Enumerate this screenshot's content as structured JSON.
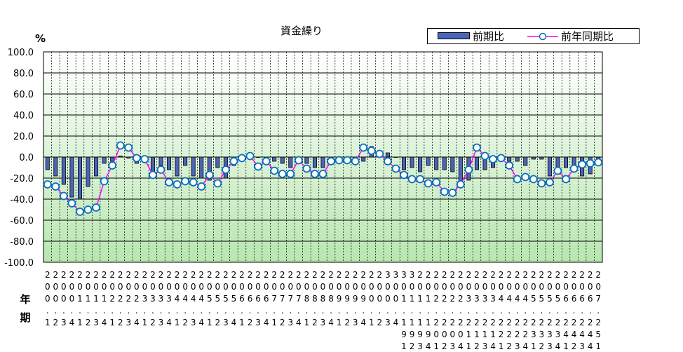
{
  "chart_data": {
    "type": "bar",
    "title": "資金繰り",
    "y_unit": "%",
    "x_axis_label": "年期",
    "ylim": [
      -100,
      100
    ],
    "y_ticks": [
      "100.0",
      "80.0",
      "60.0",
      "40.0",
      "20.0",
      "0.0",
      "-20.0",
      "-40.0",
      "-60.0",
      "-80.0",
      "-100.0"
    ],
    "y_tick_values": [
      100,
      80,
      60,
      40,
      20,
      0,
      -20,
      -40,
      -60,
      -80,
      -100
    ],
    "categories": [
      "2001",
      "2002",
      "2003",
      "2004",
      "2011",
      "2012",
      "2013",
      "2014",
      "2021",
      "2022",
      "2023",
      "2024",
      "2031",
      "2032",
      "2033",
      "2034",
      "2041",
      "2042",
      "2043",
      "2044",
      "2051",
      "2052",
      "2053",
      "2054",
      "2061",
      "2062",
      "2063",
      "2064",
      "2071",
      "2072",
      "2073",
      "2074",
      "2081",
      "2082",
      "2083",
      "2084",
      "2091",
      "2092",
      "2093",
      "2094",
      "2001",
      "2002",
      "2003",
      "2004",
      "2011",
      "2012",
      "2013",
      "2014",
      "2021",
      "2022",
      "2023",
      "2024",
      "2031",
      "2032",
      "2033",
      "2034",
      "2041",
      "2042",
      "2043",
      "2044",
      "2051",
      "2052",
      "2053",
      "2054",
      "2061",
      "2062",
      "2063",
      "2064",
      "2071"
    ],
    "tick_label_lines": {
      "line1": [
        "2",
        "2",
        "2",
        "2",
        "2",
        "2",
        "2",
        "2",
        "2",
        "2",
        "2",
        "2",
        "2",
        "2",
        "2",
        "2",
        "2",
        "2",
        "2",
        "2",
        "2",
        "2",
        "2",
        "2",
        "2",
        "2",
        "2",
        "2",
        "2",
        "2",
        "2",
        "2",
        "2",
        "2",
        "2",
        "2",
        "2",
        "2",
        "2",
        "2",
        "2",
        "2",
        "3",
        "3",
        "3",
        "3",
        "2",
        "2",
        "2",
        "2",
        "2",
        "2",
        "2",
        "2",
        "2",
        "2",
        "2",
        "2",
        "2",
        "2",
        "2",
        "2",
        "2",
        "2",
        "2",
        "2",
        "2",
        "2",
        "2"
      ],
      "line2": [
        "0",
        "0",
        "0",
        "0",
        "0",
        "0",
        "0",
        "0",
        "0",
        "0",
        "0",
        "0",
        "0",
        "0",
        "0",
        "0",
        "0",
        "0",
        "0",
        "0",
        "0",
        "0",
        "0",
        "0",
        "0",
        "0",
        "0",
        "0",
        "0",
        "0",
        "0",
        "0",
        "0",
        "0",
        "0",
        "0",
        "0",
        "0",
        "0",
        "0",
        "0",
        "0",
        "0",
        "0",
        "0",
        "0",
        "0",
        "0",
        "0",
        "0",
        "0",
        "0",
        "0",
        "0",
        "0",
        "0",
        "0",
        "0",
        "0",
        "0",
        "0",
        "0",
        "0",
        "0",
        "0",
        "0",
        "0",
        "0",
        "0"
      ],
      "line3": [
        "0",
        "0",
        "0",
        "0",
        "1",
        "1",
        "1",
        "1",
        "2",
        "2",
        "2",
        "2",
        "3",
        "3",
        "3",
        "3",
        "4",
        "4",
        "4",
        "4",
        "5",
        "5",
        "5",
        "5",
        "6",
        "6",
        "6",
        "6",
        "7",
        "7",
        "7",
        "7",
        "8",
        "8",
        "8",
        "8",
        "9",
        "9",
        "9",
        "9",
        "0",
        "0",
        "0",
        "0",
        "1",
        "1",
        "1",
        "1",
        "2",
        "2",
        "2",
        "2",
        "3",
        "3",
        "3",
        "3",
        "4",
        "4",
        "4",
        "4",
        "5",
        "5",
        "5",
        "5",
        "6",
        "6",
        "6",
        "6",
        "7"
      ],
      "line4": [
        ".",
        ".",
        ".",
        ".",
        ".",
        ".",
        ".",
        ".",
        ".",
        ".",
        ".",
        ".",
        ".",
        ".",
        ".",
        ".",
        ".",
        ".",
        ".",
        ".",
        ".",
        ".",
        ".",
        ".",
        ".",
        ".",
        ".",
        ".",
        ".",
        ".",
        ".",
        ".",
        ".",
        ".",
        ".",
        ".",
        ".",
        ".",
        ".",
        ".",
        ".",
        ".",
        ".",
        ".",
        ".",
        ".",
        ".",
        ".",
        ".",
        ".",
        ".",
        ".",
        ".",
        ".",
        ".",
        ".",
        ".",
        ".",
        ".",
        ".",
        ".",
        ".",
        ".",
        ".",
        ".",
        ".",
        ".",
        ".",
        "."
      ],
      "line5": [
        "1",
        "2",
        "3",
        "4",
        "1",
        "2",
        "3",
        "4",
        "1",
        "2",
        "3",
        "4",
        "1",
        "2",
        "3",
        "4",
        "1",
        "2",
        "3",
        "4",
        "1",
        "2",
        "3",
        "4",
        "1",
        "2",
        "3",
        "4",
        "1",
        "2",
        "3",
        "4",
        "1",
        "2",
        "3",
        "4",
        "1",
        "2",
        "3",
        "4",
        "1",
        "2",
        "3",
        "4",
        "1",
        "1",
        "1",
        "1",
        "2",
        "2",
        "2",
        "2",
        "2",
        "2",
        "2",
        "2",
        "2",
        "2",
        "2",
        "2",
        "2",
        "2",
        "2",
        "2",
        "2",
        "2",
        "2",
        "2",
        "2"
      ],
      "line6": [
        "",
        "",
        "",
        "",
        "",
        "",
        "",
        "",
        "",
        "",
        "",
        "",
        "",
        "",
        "",
        "",
        "",
        "",
        "",
        "",
        "",
        "",
        "",
        "",
        "",
        "",
        "",
        "",
        "",
        "",
        "",
        "",
        "",
        "",
        "",
        "",
        "",
        "",
        "",
        "",
        "",
        "",
        "",
        "",
        "9",
        "9",
        "9",
        "9",
        "0",
        "0",
        "0",
        "0",
        "1",
        "1",
        "1",
        "1",
        "2",
        "2",
        "2",
        "2",
        "3",
        "3",
        "3",
        "3",
        "4",
        "4",
        "4",
        "4",
        "5"
      ],
      "line7": [
        "",
        "",
        "",
        "",
        "",
        "",
        "",
        "",
        "",
        "",
        "",
        "",
        "",
        "",
        "",
        "",
        "",
        "",
        "",
        "",
        "",
        "",
        "",
        "",
        "",
        "",
        "",
        "",
        "",
        "",
        "",
        "",
        "",
        "",
        "",
        "",
        "",
        "",
        "",
        "",
        "",
        "",
        "",
        "",
        "1",
        "2",
        "3",
        "4",
        "1",
        "2",
        "3",
        "4",
        "1",
        "2",
        "3",
        "4",
        "1",
        "2",
        "3",
        "4",
        "1",
        "2",
        "3",
        "4",
        "1",
        "2",
        "3",
        "4",
        "1"
      ]
    },
    "series": [
      {
        "name": "前期比",
        "kind": "bar",
        "color": "#4a64b8",
        "values": [
          -12,
          -18,
          -26,
          -38,
          -40,
          -28,
          -18,
          -6,
          -4,
          1,
          -1,
          -6,
          -2,
          -14,
          -8,
          -12,
          -18,
          -8,
          -18,
          -20,
          -22,
          -10,
          -20,
          -8,
          -4,
          0,
          0,
          -6,
          -4,
          -6,
          -10,
          -6,
          -6,
          -10,
          -10,
          -4,
          -6,
          -4,
          -4,
          -4,
          10,
          6,
          4,
          0,
          -12,
          -10,
          -14,
          -8,
          -12,
          -12,
          -14,
          -26,
          -22,
          -12,
          -12,
          -10,
          -4,
          -4,
          -4,
          -8,
          -2,
          -2,
          -18,
          -14,
          -10,
          -14,
          -18,
          -16,
          -4
        ]
      },
      {
        "name": "前年同期比",
        "kind": "line",
        "color": "#ff00ff",
        "marker_fill": "#ffffff",
        "marker_stroke": "#0070c0",
        "values": [
          -26,
          -28,
          -37,
          -44,
          -52,
          -50,
          -48,
          -23,
          -8,
          11,
          9,
          -1,
          -2,
          -17,
          -12,
          -24,
          -26,
          -23,
          -24,
          -28,
          -17,
          -25,
          -12,
          -4,
          -1,
          1,
          -9,
          -4,
          -13,
          -16,
          -16,
          -3,
          -11,
          -16,
          -16,
          -4,
          -3,
          -3,
          -4,
          9,
          6,
          3,
          -4,
          -11,
          -17,
          -21,
          -21,
          -25,
          -24,
          -33,
          -34,
          -26,
          -12,
          9,
          1,
          -2,
          -1,
          -8,
          -21,
          -19,
          -21,
          -25,
          -24,
          -13,
          -21,
          -11,
          -7,
          -6,
          -5
        ]
      }
    ],
    "grid": true,
    "legend_position": "top-right",
    "background_gradient": [
      "#ffffff",
      "#b8e6b0"
    ]
  }
}
